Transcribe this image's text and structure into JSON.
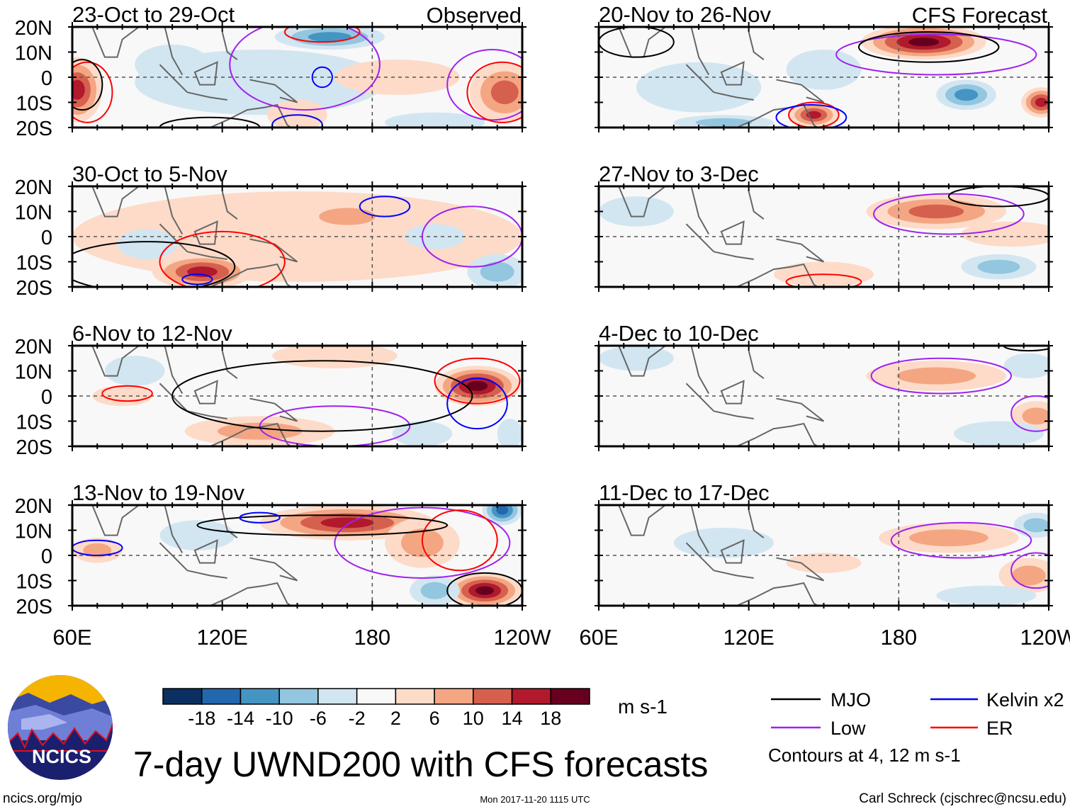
{
  "chart_data": {
    "type": "heatmap",
    "title": "7-day UWND200 with CFS forecasts",
    "units": "m s-1",
    "lon_range": [
      60,
      240
    ],
    "lat_range": [
      -20,
      20
    ],
    "lat_ticks": [
      "20N",
      "10N",
      "0",
      "10S",
      "20S"
    ],
    "lon_ticks": [
      "60E",
      "120E",
      "180",
      "120W"
    ],
    "column_labels": {
      "left": "Observed",
      "right": "CFS Forecast"
    },
    "colorbar": {
      "levels": [
        "-18",
        "-14",
        "-10",
        "-6",
        "-2",
        "2",
        "6",
        "10",
        "14",
        "18"
      ],
      "colors": [
        "#0a2f60",
        "#2368ad",
        "#4495c4",
        "#93c6df",
        "#d2e6f1",
        "#f8f8f8",
        "#fddbc8",
        "#f4a683",
        "#d6604e",
        "#b1192c",
        "#67001f"
      ]
    },
    "legend": {
      "items": [
        {
          "label": "MJO",
          "color": "#000000"
        },
        {
          "label": "Kelvin x2",
          "color": "#0000ff"
        },
        {
          "label": "Low",
          "color": "#a020f0"
        },
        {
          "label": "ER",
          "color": "#ff0000"
        }
      ],
      "note": "Contours at 4, 12 m s-1"
    },
    "panels": [
      {
        "title": "23-Oct to 29-Oct",
        "col": 0,
        "row": 0,
        "anomalies": [
          [
            135,
            -2,
            50,
            13,
            -3
          ],
          [
            62,
            -5,
            10,
            13,
            15
          ],
          [
            163,
            16,
            22,
            5,
            -13
          ],
          [
            190,
            0,
            25,
            7,
            6
          ],
          [
            233,
            -6,
            14,
            12,
            14
          ],
          [
            150,
            -15,
            12,
            6,
            3
          ],
          [
            205,
            -18,
            20,
            4,
            -5
          ],
          [
            100,
            5,
            15,
            8,
            -4
          ]
        ],
        "contours": [
          [
            "low",
            153,
            5,
            30,
            18
          ],
          [
            "low",
            228,
            -3,
            18,
            14
          ],
          [
            "er",
            66,
            -6,
            10,
            12
          ],
          [
            "er",
            232,
            -6,
            14,
            12
          ],
          [
            "er",
            160,
            18,
            15,
            4
          ],
          [
            "mjo",
            64,
            -3,
            8,
            10
          ],
          [
            "mjo",
            115,
            -20,
            20,
            4
          ],
          [
            "kelvin",
            160,
            0,
            4,
            4
          ],
          [
            "kelvin",
            150,
            -19,
            10,
            4
          ]
        ]
      },
      {
        "title": "30-Oct to 5-Nov",
        "col": 0,
        "row": 1,
        "anomalies": [
          [
            150,
            0,
            90,
            18,
            4
          ],
          [
            112,
            -14,
            20,
            7,
            16
          ],
          [
            170,
            8,
            20,
            6,
            10
          ],
          [
            230,
            -14,
            12,
            7,
            -10
          ],
          [
            90,
            -3,
            12,
            6,
            -3
          ],
          [
            205,
            0,
            12,
            5,
            -4
          ]
        ],
        "contours": [
          [
            "low",
            220,
            0,
            20,
            12
          ],
          [
            "er",
            120,
            -10,
            25,
            12
          ],
          [
            "mjo",
            90,
            -12,
            35,
            10
          ],
          [
            "kelvin",
            185,
            12,
            10,
            4
          ],
          [
            "kelvin",
            110,
            -17,
            6,
            2
          ]
        ]
      },
      {
        "title": "6-Nov to 12-Nov",
        "col": 0,
        "row": 2,
        "anomalies": [
          [
            222,
            4,
            17,
            8,
            19
          ],
          [
            135,
            -14,
            30,
            6,
            10
          ],
          [
            165,
            16,
            25,
            5,
            6
          ],
          [
            85,
            10,
            12,
            6,
            -3
          ],
          [
            200,
            -15,
            12,
            5,
            -3
          ],
          [
            80,
            0,
            12,
            4,
            4
          ],
          [
            235,
            -15,
            5,
            6,
            -4
          ]
        ],
        "contours": [
          [
            "low",
            165,
            -12,
            30,
            8
          ],
          [
            "er",
            222,
            6,
            17,
            9
          ],
          [
            "mjo",
            160,
            0,
            60,
            14
          ],
          [
            "kelvin",
            222,
            -3,
            12,
            10
          ],
          [
            "er",
            82,
            1,
            10,
            3
          ]
        ]
      },
      {
        "title": "13-Nov to 19-Nov",
        "col": 0,
        "row": 3,
        "anomalies": [
          [
            170,
            13,
            35,
            7,
            16
          ],
          [
            225,
            -14,
            15,
            7,
            19
          ],
          [
            232,
            18,
            8,
            6,
            -15
          ],
          [
            205,
            -14,
            10,
            6,
            -8
          ],
          [
            70,
            2,
            10,
            5,
            7
          ],
          [
            110,
            8,
            15,
            6,
            -3
          ],
          [
            200,
            5,
            15,
            10,
            8
          ]
        ],
        "contours": [
          [
            "low",
            200,
            5,
            35,
            14
          ],
          [
            "er",
            215,
            6,
            15,
            12
          ],
          [
            "mjo",
            160,
            12,
            50,
            4
          ],
          [
            "mjo",
            225,
            -14,
            15,
            7
          ],
          [
            "kelvin",
            70,
            3,
            10,
            3
          ],
          [
            "kelvin",
            135,
            15,
            8,
            2
          ]
        ]
      },
      {
        "title": "20-Nov to 26-Nov",
        "col": 1,
        "row": 0,
        "anomalies": [
          [
            190,
            14,
            25,
            7,
            19
          ],
          [
            146,
            -15,
            10,
            5,
            15
          ],
          [
            207,
            -7,
            12,
            6,
            -11
          ],
          [
            100,
            -4,
            25,
            10,
            -4
          ],
          [
            237,
            -10,
            8,
            6,
            17
          ],
          [
            150,
            3,
            15,
            8,
            -4
          ],
          [
            110,
            -18,
            20,
            3,
            -8
          ]
        ],
        "contours": [
          [
            "low",
            195,
            9,
            40,
            8
          ],
          [
            "mjo",
            192,
            12,
            28,
            6
          ],
          [
            "mjo",
            75,
            14,
            15,
            6
          ],
          [
            "er",
            146,
            -15,
            10,
            5
          ],
          [
            "kelvin",
            145,
            -16,
            14,
            5
          ]
        ]
      },
      {
        "title": "27-Nov to 3-Dec",
        "col": 1,
        "row": 1,
        "anomalies": [
          [
            195,
            10,
            28,
            7,
            12
          ],
          [
            225,
            1,
            20,
            5,
            4
          ],
          [
            75,
            10,
            15,
            6,
            -4
          ],
          [
            220,
            -12,
            15,
            5,
            -8
          ],
          [
            150,
            -15,
            20,
            5,
            3
          ],
          [
            110,
            -3,
            25,
            5,
            -2
          ]
        ],
        "contours": [
          [
            "low",
            200,
            9,
            30,
            8
          ],
          [
            "mjo",
            220,
            16,
            20,
            4
          ],
          [
            "er",
            150,
            -18,
            15,
            3
          ]
        ]
      },
      {
        "title": "4-Dec to 10-Dec",
        "col": 1,
        "row": 2,
        "anomalies": [
          [
            195,
            8,
            28,
            6,
            7
          ],
          [
            235,
            -8,
            10,
            6,
            10
          ],
          [
            75,
            15,
            15,
            5,
            -3
          ],
          [
            232,
            12,
            10,
            5,
            -6
          ],
          [
            220,
            -15,
            18,
            5,
            -4
          ],
          [
            100,
            -4,
            20,
            4,
            -2
          ]
        ],
        "contours": [
          [
            "low",
            197,
            8,
            28,
            7
          ],
          [
            "low",
            235,
            -7,
            10,
            7
          ],
          [
            "mjo",
            232,
            20,
            10,
            2
          ]
        ]
      },
      {
        "title": "11-Dec to 17-Dec",
        "col": 1,
        "row": 3,
        "anomalies": [
          [
            200,
            7,
            28,
            6,
            9
          ],
          [
            232,
            -8,
            12,
            7,
            10
          ],
          [
            235,
            12,
            9,
            5,
            -10
          ],
          [
            110,
            5,
            20,
            6,
            -3
          ],
          [
            150,
            -3,
            15,
            4,
            3
          ],
          [
            215,
            -16,
            20,
            4,
            -3
          ]
        ],
        "contours": [
          [
            "low",
            205,
            6,
            28,
            7
          ],
          [
            "low",
            235,
            -6,
            10,
            7
          ]
        ]
      }
    ]
  },
  "footer": {
    "logo_text": "NCICS",
    "website": "ncics.org/mjo",
    "timestamp": "Mon 2017-11-20 1115 UTC",
    "credit": "Carl Schreck (cjschrec@ncsu.edu)"
  }
}
